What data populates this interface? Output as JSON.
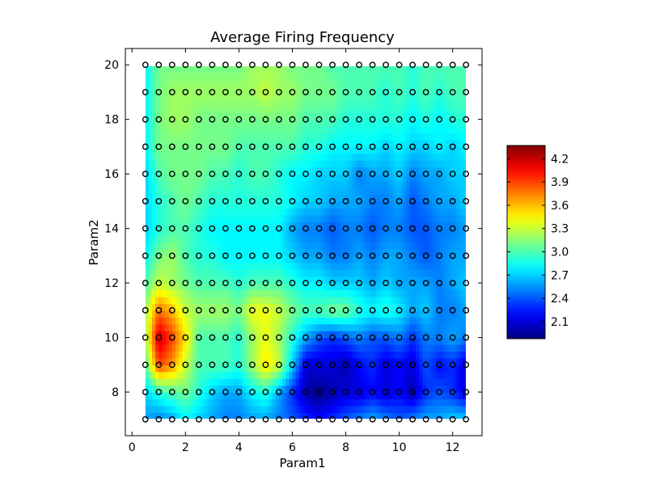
{
  "chart_data": {
    "type": "heatmap",
    "title": "Average Firing Frequency",
    "xlabel": "Param1",
    "ylabel": "Param2",
    "xlim": [
      -0.25,
      13.1
    ],
    "ylim": [
      6.4,
      20.6
    ],
    "x_ticks": [
      "0",
      "2",
      "4",
      "6",
      "8",
      "10",
      "12"
    ],
    "x_tick_values": [
      0,
      2,
      4,
      6,
      8,
      10,
      12
    ],
    "y_ticks": [
      "8",
      "10",
      "12",
      "14",
      "16",
      "18",
      "20"
    ],
    "y_tick_values": [
      8,
      10,
      12,
      14,
      16,
      18,
      20
    ],
    "colormap": "jet",
    "colorbar": {
      "ticks": [
        "2.1",
        "2.4",
        "2.7",
        "3.0",
        "3.3",
        "3.6",
        "3.9",
        "4.2"
      ],
      "tick_values": [
        2.1,
        2.4,
        2.7,
        3.0,
        3.3,
        3.6,
        3.9,
        4.2
      ],
      "vmin": 1.88,
      "vmax": 4.37
    },
    "x": [
      0.5,
      1.0,
      1.5,
      2.0,
      2.5,
      3.0,
      3.5,
      4.0,
      4.5,
      5.0,
      5.5,
      6.0,
      6.5,
      7.0,
      7.5,
      8.0,
      8.5,
      9.0,
      9.5,
      10.0,
      10.5,
      11.0,
      11.5,
      12.0,
      12.5
    ],
    "y": [
      7,
      8,
      9,
      10,
      11,
      12,
      13,
      14,
      15,
      16,
      17,
      18,
      19,
      20
    ],
    "z": [
      [
        2.6,
        2.5,
        2.6,
        2.8,
        2.7,
        2.6,
        2.5,
        2.5,
        2.6,
        2.6,
        2.5,
        2.4,
        2.3,
        2.2,
        2.3,
        2.4,
        2.5,
        2.6,
        2.5,
        2.4,
        2.5,
        2.6,
        2.6,
        2.7,
        2.7
      ],
      [
        2.7,
        2.9,
        3.0,
        3.1,
        2.9,
        2.7,
        2.6,
        2.6,
        2.8,
        2.9,
        2.6,
        2.3,
        2.0,
        1.9,
        2.0,
        2.1,
        2.1,
        2.2,
        2.1,
        2.2,
        2.0,
        2.3,
        2.4,
        2.3,
        2.1
      ],
      [
        3.0,
        3.9,
        3.7,
        3.3,
        3.0,
        3.0,
        3.0,
        2.9,
        3.2,
        3.5,
        3.3,
        2.7,
        2.1,
        2.1,
        2.1,
        2.0,
        2.2,
        2.3,
        2.1,
        2.2,
        2.1,
        2.4,
        2.2,
        2.3,
        2.1
      ],
      [
        3.2,
        4.2,
        3.9,
        3.5,
        3.0,
        3.0,
        3.0,
        2.9,
        3.2,
        3.4,
        3.2,
        2.9,
        2.6,
        2.4,
        2.3,
        2.4,
        2.5,
        2.4,
        2.4,
        2.5,
        2.3,
        2.5,
        2.5,
        2.6,
        2.5
      ],
      [
        3.2,
        3.8,
        3.6,
        3.3,
        3.2,
        3.2,
        3.2,
        3.1,
        3.4,
        3.4,
        3.3,
        3.1,
        3.0,
        3.0,
        3.1,
        3.1,
        2.9,
        2.8,
        2.9,
        2.8,
        2.6,
        2.7,
        2.5,
        2.5,
        2.6
      ],
      [
        3.0,
        3.3,
        3.2,
        3.1,
        3.0,
        3.0,
        3.0,
        2.9,
        3.0,
        3.0,
        3.0,
        2.9,
        2.8,
        2.8,
        2.7,
        2.7,
        2.7,
        2.6,
        2.7,
        2.6,
        2.6,
        2.6,
        2.5,
        2.6,
        2.7
      ],
      [
        2.8,
        3.1,
        3.2,
        3.0,
        2.9,
        2.9,
        2.8,
        2.8,
        2.8,
        2.8,
        2.8,
        2.7,
        2.6,
        2.6,
        2.5,
        2.5,
        2.6,
        2.5,
        2.6,
        2.6,
        2.5,
        2.4,
        2.5,
        2.6,
        2.6
      ],
      [
        2.7,
        2.9,
        3.0,
        3.0,
        2.9,
        2.8,
        2.8,
        2.8,
        2.8,
        2.8,
        2.8,
        2.6,
        2.5,
        2.5,
        2.4,
        2.5,
        2.5,
        2.4,
        2.5,
        2.5,
        2.4,
        2.4,
        2.5,
        2.5,
        2.6
      ],
      [
        2.7,
        2.9,
        3.0,
        3.1,
        3.0,
        2.9,
        2.9,
        2.9,
        2.9,
        2.9,
        2.9,
        2.8,
        2.7,
        2.7,
        2.6,
        2.6,
        2.6,
        2.5,
        2.5,
        2.6,
        2.4,
        2.5,
        2.6,
        2.6,
        2.7
      ],
      [
        2.7,
        3.0,
        3.1,
        3.1,
        3.1,
        3.0,
        3.0,
        2.9,
        3.0,
        3.0,
        2.9,
        2.8,
        2.8,
        2.7,
        2.7,
        2.7,
        2.5,
        2.6,
        2.6,
        2.7,
        2.5,
        2.6,
        2.6,
        2.7,
        2.7
      ],
      [
        2.8,
        3.1,
        3.1,
        3.1,
        3.1,
        3.1,
        3.1,
        3.0,
        3.0,
        3.0,
        3.0,
        3.0,
        2.9,
        2.9,
        2.8,
        2.8,
        2.8,
        2.8,
        2.7,
        2.8,
        2.7,
        2.7,
        2.8,
        2.7,
        2.8
      ],
      [
        2.8,
        3.1,
        3.2,
        3.2,
        3.1,
        3.1,
        3.1,
        3.1,
        3.1,
        3.1,
        3.1,
        3.1,
        3.0,
        3.0,
        3.0,
        2.9,
        2.9,
        2.9,
        2.9,
        2.9,
        2.8,
        2.9,
        2.8,
        2.9,
        2.9
      ],
      [
        2.8,
        3.1,
        3.2,
        3.2,
        3.2,
        3.2,
        3.2,
        3.2,
        3.2,
        3.3,
        3.2,
        3.2,
        3.1,
        3.1,
        3.1,
        3.0,
        3.0,
        3.0,
        2.9,
        3.0,
        2.9,
        3.0,
        2.9,
        3.0,
        3.0
      ],
      [
        2.8,
        3.1,
        3.1,
        3.1,
        3.1,
        3.1,
        3.1,
        3.1,
        3.2,
        3.2,
        3.2,
        3.1,
        3.1,
        3.1,
        3.0,
        3.0,
        3.0,
        3.0,
        3.0,
        3.0,
        2.9,
        3.0,
        3.0,
        3.0,
        3.0
      ]
    ]
  }
}
